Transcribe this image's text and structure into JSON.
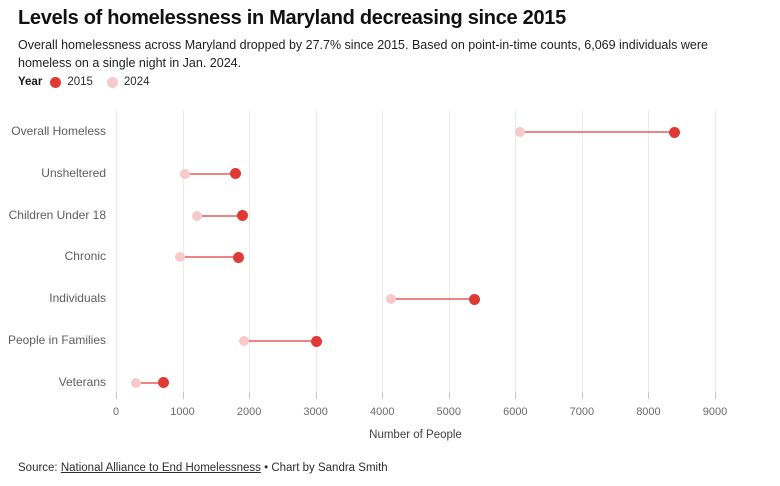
{
  "header": {
    "title": "Levels of homelessness in Maryland decreasing since 2015",
    "subtitle": "Overall homelessness across Maryland dropped by 27.7% since 2015. Based on point-in-time counts, 6,069 individuals were homeless on a single night in Jan. 2024."
  },
  "legend": {
    "title": "Year"
  },
  "footer": {
    "source_prefix": "Source: ",
    "source_link": "National Alliance to End Homelessness",
    "credit": " • Chart by Sandra Smith"
  },
  "colors": {
    "red_2015": "#e13a36",
    "pink_2024": "#f7c9cb",
    "connector": "rgba(225,58,54,0.62)",
    "gridline": "#ebebeb"
  },
  "chart_data": {
    "type": "scatter",
    "variant": "dumbbell-dot-plot",
    "title": "Levels of homelessness in Maryland decreasing since 2015",
    "categories": [
      "Overall Homeless",
      "Unsheltered",
      "Children Under 18",
      "Chronic",
      "Individuals",
      "People in Families",
      "Veterans"
    ],
    "series": [
      {
        "name": "2015",
        "color": "#e13a36",
        "values": [
          8390,
          1790,
          1905,
          1840,
          5380,
          3010,
          715
        ]
      },
      {
        "name": "2024",
        "color": "#f7c9cb",
        "values": [
          6069,
          1030,
          1210,
          960,
          4139,
          1930,
          305
        ]
      }
    ],
    "xlabel": "Number of People",
    "ylabel": "",
    "xlim": [
      0,
      9000
    ],
    "xticks": [
      0,
      1000,
      2000,
      3000,
      4000,
      5000,
      6000,
      7000,
      8000,
      9000
    ],
    "grid": "vertical",
    "legend_position": "top-left"
  }
}
